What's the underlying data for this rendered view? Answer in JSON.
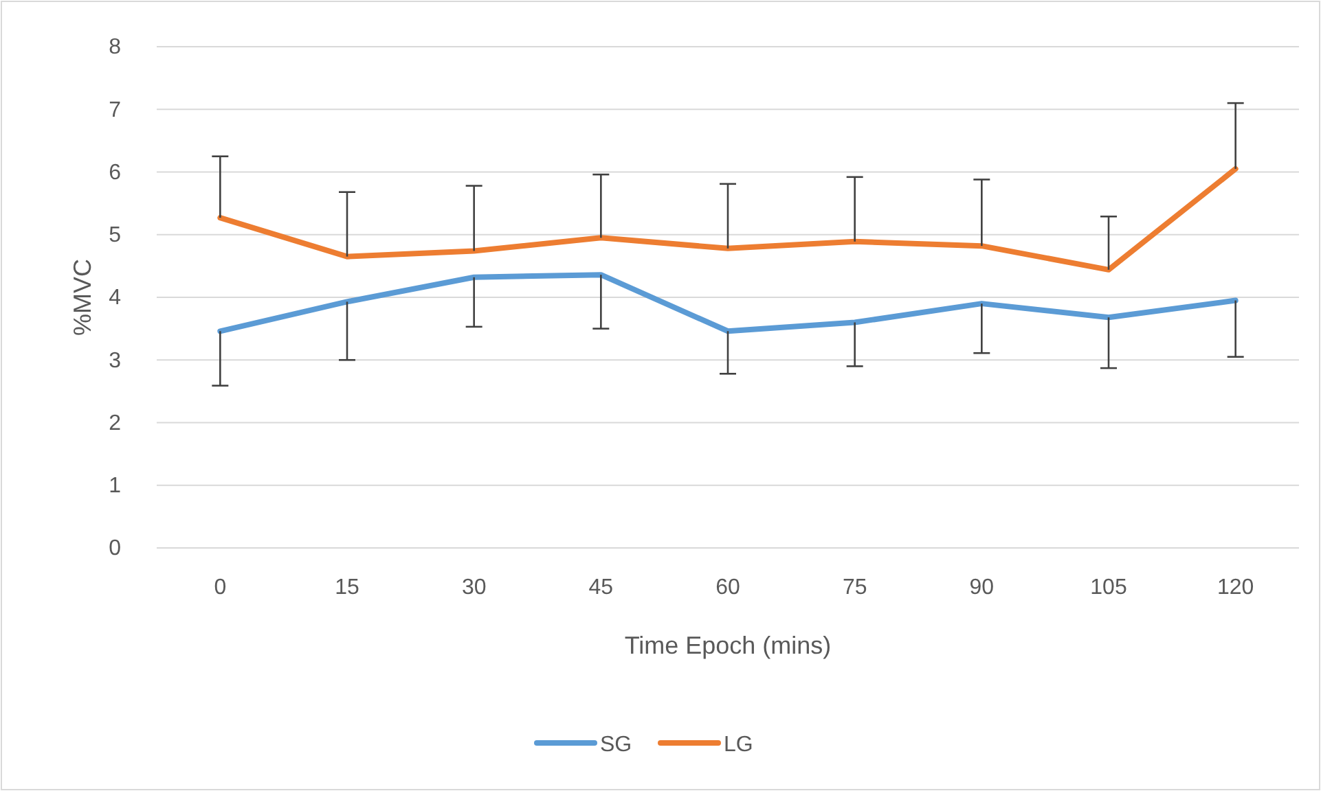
{
  "chart_data": {
    "type": "line",
    "xlabel": "Time Epoch (mins)",
    "ylabel": "%MVC",
    "categories": [
      "0",
      "15",
      "30",
      "45",
      "60",
      "75",
      "90",
      "105",
      "120"
    ],
    "series": [
      {
        "name": "SG",
        "color": "#5b9bd5",
        "values": [
          3.46,
          3.93,
          4.32,
          4.36,
          3.46,
          3.6,
          3.9,
          3.68,
          3.95
        ],
        "errors": [
          [
            2.59,
            3.46
          ],
          [
            3.0,
            3.93
          ],
          [
            3.53,
            4.32
          ],
          [
            3.5,
            4.36
          ],
          [
            2.78,
            3.46
          ],
          [
            2.9,
            3.6
          ],
          [
            3.11,
            3.9
          ],
          [
            2.87,
            3.68
          ],
          [
            3.05,
            3.95
          ]
        ]
      },
      {
        "name": "LG",
        "color": "#ed7d31",
        "values": [
          5.27,
          4.65,
          4.74,
          4.95,
          4.78,
          4.89,
          4.82,
          4.44,
          6.05
        ],
        "errors": [
          [
            5.27,
            6.25
          ],
          [
            4.65,
            5.68
          ],
          [
            4.74,
            5.78
          ],
          [
            4.95,
            5.96
          ],
          [
            4.78,
            5.81
          ],
          [
            4.89,
            5.92
          ],
          [
            4.82,
            5.88
          ],
          [
            4.44,
            5.29
          ],
          [
            6.05,
            7.1
          ]
        ]
      }
    ],
    "ylim": [
      0,
      8
    ],
    "yticks": [
      0,
      1,
      2,
      3,
      4,
      5,
      6,
      7,
      8
    ],
    "grid": "y",
    "legend": "bottom",
    "marker": "none",
    "line_style": "solid"
  }
}
